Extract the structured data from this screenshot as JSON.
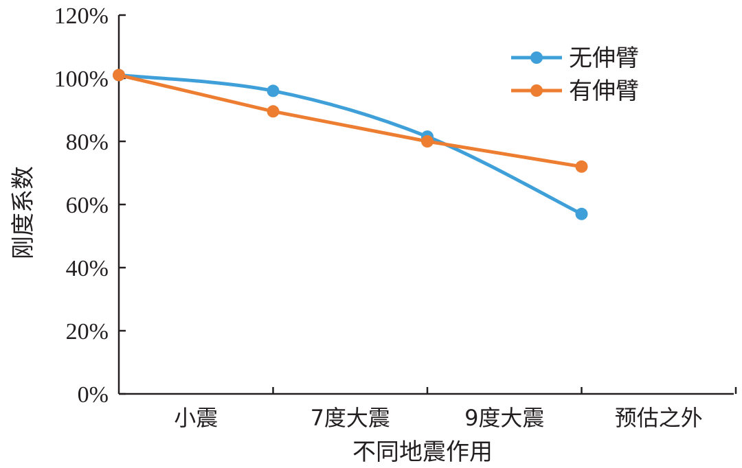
{
  "chart_data": {
    "type": "line",
    "title": "",
    "xlabel": "不同地震作用",
    "ylabel": "刚度系数",
    "categories": [
      "小震",
      "7度大震",
      "9度大震",
      "预估之外"
    ],
    "ylim": [
      0,
      120
    ],
    "yticks": [
      "0%",
      "20%",
      "40%",
      "60%",
      "80%",
      "100%",
      "120%"
    ],
    "series": [
      {
        "name": "无伸臂",
        "color": "#3fa0d9",
        "smooth": true,
        "values": [
          101,
          96,
          81.5,
          57
        ]
      },
      {
        "name": "有伸臂",
        "color": "#ed7d31",
        "smooth": false,
        "values": [
          101,
          89.5,
          80,
          72
        ]
      }
    ],
    "legend_position": "top-right",
    "grid": false
  }
}
